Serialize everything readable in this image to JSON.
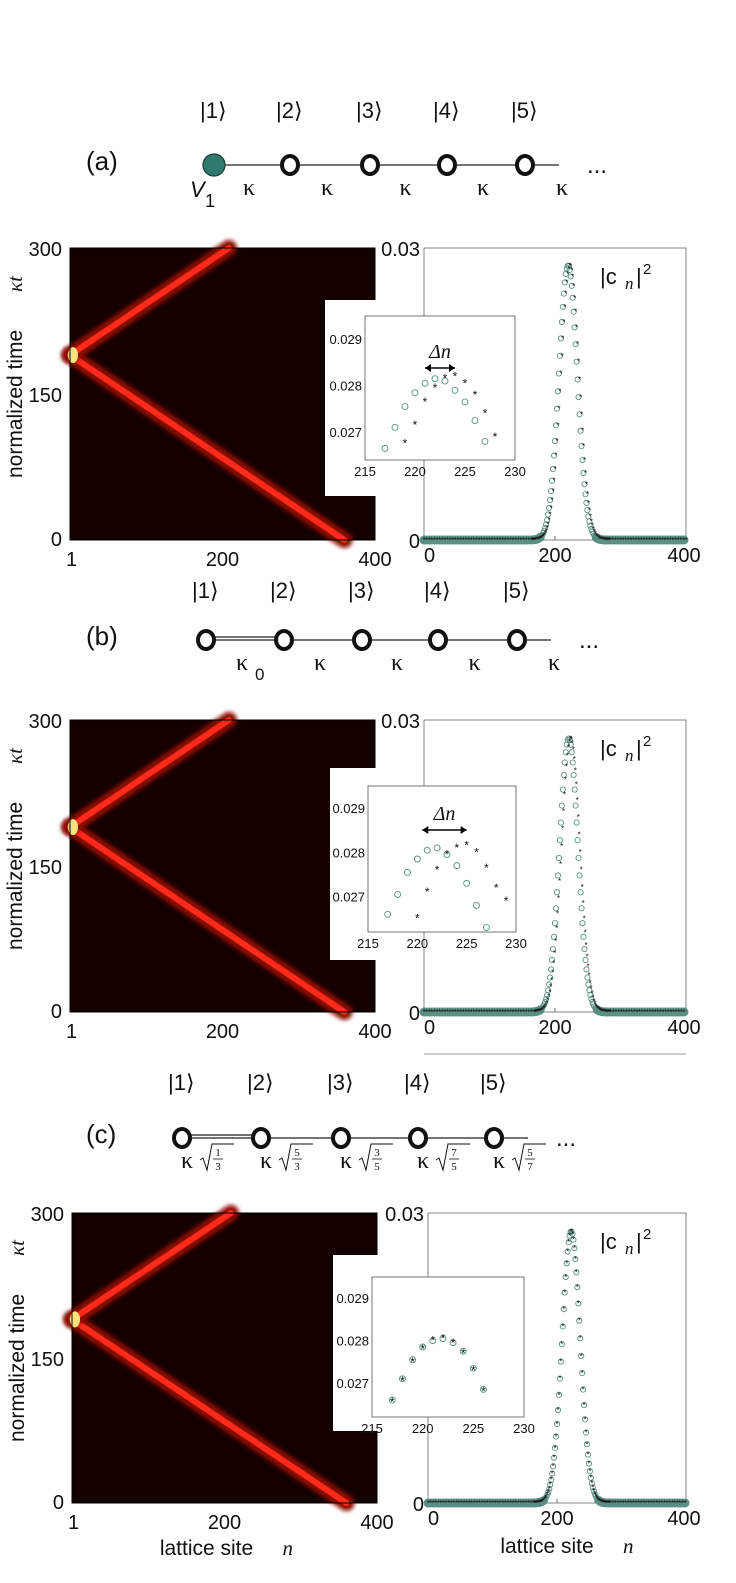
{
  "colors": {
    "teal": "#2e7a6c",
    "series_circle": "#5a8f82",
    "series_star": "#2d3c8c",
    "heat_bg": "#150000",
    "heat_beam": "#ff2a1a"
  },
  "ellipsis": "...",
  "shared": {
    "kappa": "κ",
    "kappa_t": "κt",
    "heat_ylabel": "normalized time",
    "heat_xlabel": "lattice site",
    "line_xlabel": "lattice site",
    "n_italic": "n",
    "cn2_c": "|c",
    "cn2_n": "n",
    "cn2_bar": "|",
    "cn2_exp": "2",
    "delta_n": "Δn"
  },
  "panels": [
    {
      "label": "(a)",
      "kets": [
        "|1⟩",
        "|2⟩",
        "|3⟩",
        "|4⟩",
        "|5⟩"
      ],
      "first_site": "filled",
      "first_site_label": "V",
      "first_site_sub": "1",
      "couplings": [
        "κ",
        "κ",
        "κ",
        "κ",
        "κ"
      ],
      "show_delta_n": true,
      "heatmap": {
        "x_ticks": [
          "1",
          "200",
          "400"
        ],
        "y_ticks": [
          "300",
          "150",
          "0"
        ],
        "collision_time": 190,
        "collision_site": 1
      },
      "chart_data": {
        "type": "scatter",
        "title": "",
        "ylabel": "|c_n|^2",
        "xlabel": "",
        "x_ticks": [
          "0",
          "200",
          "400"
        ],
        "y_ticks": [
          "0.03",
          "0"
        ],
        "xlim": [
          0,
          400
        ],
        "ylim": [
          0,
          0.03
        ],
        "series": [
          {
            "name": "circles",
            "center": 220,
            "peak": 0.0282,
            "width": 14
          },
          {
            "name": "stars",
            "center": 223,
            "peak": 0.0282,
            "width": 14
          }
        ],
        "inset": {
          "xlim": [
            215,
            230
          ],
          "ylim": [
            0.0264,
            0.0295
          ],
          "x_ticks": [
            "215",
            "220",
            "225",
            "230"
          ],
          "y_ticks": [
            "0.029",
            "0.028",
            "0.027"
          ],
          "circles_x": [
            217,
            218,
            219,
            220,
            221,
            222,
            223,
            224,
            225,
            226,
            227
          ],
          "circles_y": [
            0.02665,
            0.0271,
            0.02755,
            0.02785,
            0.02805,
            0.02815,
            0.0281,
            0.0279,
            0.02765,
            0.02725,
            0.0268
          ],
          "stars_x": [
            219,
            220,
            221,
            222,
            223,
            224,
            225,
            226,
            227,
            228
          ],
          "stars_y": [
            0.02675,
            0.02715,
            0.02765,
            0.02795,
            0.02815,
            0.0282,
            0.02805,
            0.0278,
            0.0274,
            0.0269
          ]
        }
      }
    },
    {
      "label": "(b)",
      "kets": [
        "|1⟩",
        "|2⟩",
        "|3⟩",
        "|4⟩",
        "|5⟩"
      ],
      "first_site": "open",
      "couplings": [
        "κ",
        "κ",
        "κ",
        "κ",
        "κ"
      ],
      "coupling0_sub": "0",
      "show_delta_n": true,
      "heatmap": {
        "x_ticks": [
          "1",
          "200",
          "400"
        ],
        "y_ticks": [
          "300",
          "150",
          "0"
        ],
        "collision_time": 190,
        "collision_site": 1
      },
      "chart_data": {
        "type": "scatter",
        "title": "",
        "ylabel": "|c_n|^2",
        "xlabel": "",
        "x_ticks": [
          "0",
          "200",
          "400"
        ],
        "y_ticks": [
          "0.03",
          "0"
        ],
        "xlim": [
          0,
          400
        ],
        "ylim": [
          0,
          0.03
        ],
        "series": [
          {
            "name": "circles",
            "center": 221,
            "peak": 0.0281,
            "width": 14
          },
          {
            "name": "stars",
            "center": 224,
            "peak": 0.0281,
            "width": 14
          }
        ],
        "inset": {
          "xlim": [
            215,
            230
          ],
          "ylim": [
            0.0262,
            0.0295
          ],
          "x_ticks": [
            "215",
            "220",
            "225",
            "230"
          ],
          "y_ticks": [
            "0.029",
            "0.028",
            "0.027"
          ],
          "circles_x": [
            217,
            218,
            219,
            220,
            221,
            222,
            223,
            224,
            225,
            226,
            227
          ],
          "circles_y": [
            0.0266,
            0.02705,
            0.02755,
            0.02785,
            0.02805,
            0.0281,
            0.02795,
            0.0277,
            0.0273,
            0.0268,
            0.0263
          ],
          "stars_x": [
            220,
            221,
            222,
            223,
            224,
            225,
            226,
            227,
            228,
            229
          ],
          "stars_y": [
            0.0265,
            0.0271,
            0.0276,
            0.02795,
            0.0281,
            0.02815,
            0.028,
            0.02765,
            0.0272,
            0.0269
          ]
        }
      }
    },
    {
      "label": "(c)",
      "kets": [
        "|1⟩",
        "|2⟩",
        "|3⟩",
        "|4⟩",
        "|5⟩"
      ],
      "first_site": "open",
      "couplings": [
        "κ",
        "κ",
        "κ",
        "κ",
        "κ"
      ],
      "sqrt_fracs": [
        [
          "1",
          "3"
        ],
        [
          "5",
          "3"
        ],
        [
          "3",
          "5"
        ],
        [
          "7",
          "5"
        ],
        [
          "5",
          "7"
        ]
      ],
      "show_delta_n": false,
      "heatmap": {
        "x_ticks": [
          "1",
          "200",
          "400"
        ],
        "y_ticks": [
          "300",
          "150",
          "0"
        ],
        "collision_time": 190,
        "collision_site": 1
      },
      "chart_data": {
        "type": "scatter",
        "title": "",
        "ylabel": "|c_n|^2",
        "xlabel": "lattice site n",
        "x_ticks": [
          "0",
          "200",
          "400"
        ],
        "y_ticks": [
          "0.03",
          "0"
        ],
        "xlim": [
          0,
          400
        ],
        "ylim": [
          0,
          0.03
        ],
        "series": [
          {
            "name": "circles",
            "center": 222,
            "peak": 0.0281,
            "width": 14
          },
          {
            "name": "stars",
            "center": 222,
            "peak": 0.0281,
            "width": 14
          }
        ],
        "inset": {
          "xlim": [
            215,
            230
          ],
          "ylim": [
            0.0262,
            0.0295
          ],
          "x_ticks": [
            "215",
            "220",
            "225",
            "230"
          ],
          "y_ticks": [
            "0.029",
            "0.028",
            "0.027"
          ],
          "circles_x": [
            217,
            218,
            219,
            220,
            221,
            222,
            223,
            224,
            225,
            226
          ],
          "circles_y": [
            0.0266,
            0.0271,
            0.02755,
            0.02785,
            0.028,
            0.02805,
            0.02795,
            0.02775,
            0.02735,
            0.02685
          ],
          "stars_x": [
            217,
            218,
            219,
            220,
            221,
            222,
            223,
            224,
            225,
            226
          ],
          "stars_y": [
            0.02655,
            0.02705,
            0.0275,
            0.0278,
            0.028,
            0.02805,
            0.02795,
            0.0277,
            0.0273,
            0.0268
          ]
        }
      }
    }
  ]
}
